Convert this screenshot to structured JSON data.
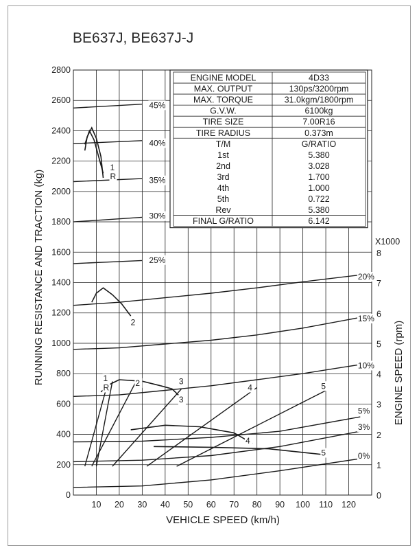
{
  "title": "BE637J, BE637J-J",
  "spec_table": [
    [
      "ENGINE MODEL",
      "4D33"
    ],
    [
      "MAX. OUTPUT",
      "130ps/3200rpm"
    ],
    [
      "MAX. TORQUE",
      "31.0kgm/1800rpm"
    ],
    [
      "G.V.W.",
      "6100kg"
    ],
    [
      "TIRE SIZE",
      "7.00R16"
    ],
    [
      "TIRE RADIUS",
      "0.373m"
    ],
    [
      "T/M",
      "G/RATIO"
    ],
    [
      "1st",
      "5.380"
    ],
    [
      "2nd",
      "3.028"
    ],
    [
      "3rd",
      "1.700"
    ],
    [
      "4th",
      "1.000"
    ],
    [
      "5th",
      "0.722"
    ],
    [
      "Rev",
      "5.380"
    ],
    [
      "FINAL G/RATIO",
      "6.142"
    ]
  ],
  "chart_data": {
    "type": "line",
    "xlabel": "VEHICLE SPEED (km/h)",
    "ylabel": "RUNNING RESISTANCE AND TRACTION (kg)",
    "y2label": "ENGINE SPEED (rpm)",
    "y2_multiplier_label": "X1000",
    "xlim": [
      0,
      130
    ],
    "ylim": [
      0,
      2800
    ],
    "y2lim": [
      0,
      8
    ],
    "x_ticks": [
      "10",
      "20",
      "30",
      "40",
      "50",
      "60",
      "70",
      "80",
      "90",
      "100",
      "110",
      "120"
    ],
    "y_ticks": [
      "0",
      "200",
      "400",
      "600",
      "800",
      "1000",
      "1200",
      "1400",
      "1600",
      "1800",
      "2000",
      "2200",
      "2400",
      "2600",
      "2800"
    ],
    "y2_ticks": [
      "0",
      "1",
      "2",
      "3",
      "4",
      "5",
      "6",
      "7",
      "8"
    ],
    "grid": true,
    "running_resistance": [
      {
        "label": "45%",
        "points": [
          [
            0,
            2550
          ],
          [
            30,
            2575
          ]
        ]
      },
      {
        "label": "40%",
        "points": [
          [
            0,
            2315
          ],
          [
            30,
            2335
          ]
        ]
      },
      {
        "label": "35%",
        "points": [
          [
            0,
            2065
          ],
          [
            30,
            2085
          ]
        ]
      },
      {
        "label": "30%",
        "points": [
          [
            0,
            1800
          ],
          [
            30,
            1830
          ]
        ]
      },
      {
        "label": "25%",
        "points": [
          [
            0,
            1525
          ],
          [
            30,
            1545
          ]
        ]
      },
      {
        "label": "20%",
        "points": [
          [
            0,
            1250
          ],
          [
            20,
            1270
          ],
          [
            40,
            1300
          ],
          [
            60,
            1330
          ],
          [
            80,
            1365
          ],
          [
            100,
            1405
          ],
          [
            125,
            1450
          ]
        ]
      },
      {
        "label": "15%",
        "points": [
          [
            0,
            960
          ],
          [
            20,
            970
          ],
          [
            40,
            995
          ],
          [
            60,
            1020
          ],
          [
            80,
            1055
          ],
          [
            100,
            1100
          ],
          [
            125,
            1170
          ]
        ]
      },
      {
        "label": "10%",
        "points": [
          [
            0,
            650
          ],
          [
            20,
            660
          ],
          [
            40,
            690
          ],
          [
            60,
            720
          ],
          [
            80,
            760
          ],
          [
            100,
            800
          ],
          [
            125,
            860
          ]
        ]
      },
      {
        "label": "5%",
        "points": [
          [
            0,
            350
          ],
          [
            30,
            355
          ],
          [
            60,
            380
          ],
          [
            90,
            420
          ],
          [
            125,
            515
          ]
        ]
      },
      {
        "label": "3%",
        "points": [
          [
            0,
            220
          ],
          [
            30,
            230
          ],
          [
            60,
            260
          ],
          [
            90,
            320
          ],
          [
            125,
            420
          ]
        ]
      },
      {
        "label": "0%",
        "points": [
          [
            0,
            50
          ],
          [
            30,
            60
          ],
          [
            60,
            100
          ],
          [
            90,
            160
          ],
          [
            125,
            240
          ]
        ]
      }
    ],
    "traction": [
      {
        "label": "1",
        "points": [
          [
            5,
            2270
          ],
          [
            6,
            2360
          ],
          [
            8,
            2420
          ],
          [
            10,
            2350
          ],
          [
            12,
            2230
          ],
          [
            13,
            2090
          ]
        ]
      },
      {
        "label": "R",
        "points": [
          [
            5,
            2310
          ],
          [
            7,
            2400
          ],
          [
            9,
            2340
          ],
          [
            11,
            2230
          ],
          [
            13,
            2120
          ]
        ]
      },
      {
        "label": "2",
        "points": [
          [
            8,
            1270
          ],
          [
            10,
            1330
          ],
          [
            13,
            1365
          ],
          [
            17,
            1320
          ],
          [
            21,
            1260
          ],
          [
            25,
            1180
          ]
        ]
      },
      {
        "label": "1",
        "points": [
          [
            12,
            680
          ],
          [
            16,
            730
          ],
          [
            20,
            760
          ]
        ]
      },
      {
        "label": "2",
        "points": [
          [
            20,
            760
          ],
          [
            30,
            750
          ],
          [
            38,
            720
          ]
        ]
      },
      {
        "label": "3",
        "points": [
          [
            38,
            720
          ],
          [
            43,
            700
          ],
          [
            47,
            640
          ]
        ]
      },
      {
        "label": "4",
        "points": [
          [
            25,
            430
          ],
          [
            40,
            460
          ],
          [
            55,
            450
          ],
          [
            70,
            410
          ],
          [
            78,
            340
          ]
        ]
      },
      {
        "label": "5",
        "points": [
          [
            35,
            320
          ],
          [
            60,
            315
          ],
          [
            85,
            305
          ],
          [
            110,
            265
          ]
        ]
      }
    ],
    "engine_speed_lines": [
      {
        "label": "1",
        "points": [
          [
            5,
            0.95
          ],
          [
            15,
            3.7
          ]
        ]
      },
      {
        "label": "R",
        "points": [
          [
            10,
            0.95
          ],
          [
            17,
            3.75
          ]
        ]
      },
      {
        "label": "2",
        "points": [
          [
            8,
            0.95
          ],
          [
            27,
            3.7
          ]
        ]
      },
      {
        "label": "3",
        "points": [
          [
            17,
            0.95
          ],
          [
            47,
            3.5
          ]
        ]
      },
      {
        "label": "4",
        "points": [
          [
            32,
            0.95
          ],
          [
            80,
            3.55
          ]
        ]
      },
      {
        "label": "5",
        "points": [
          [
            45,
            0.95
          ],
          [
            110,
            3.45
          ]
        ]
      }
    ],
    "annotations": [
      {
        "text": "45%",
        "x": 33,
        "y": 2550
      },
      {
        "text": "40%",
        "x": 33,
        "y": 2300
      },
      {
        "text": "35%",
        "x": 33,
        "y": 2055
      },
      {
        "text": "30%",
        "x": 33,
        "y": 1820
      },
      {
        "text": "25%",
        "x": 33,
        "y": 1530
      },
      {
        "text": "20%",
        "x": 124,
        "y": 1420
      },
      {
        "text": "15%",
        "x": 124,
        "y": 1145
      },
      {
        "text": "10%",
        "x": 124,
        "y": 835
      },
      {
        "text": "5%",
        "x": 124,
        "y": 535
      },
      {
        "text": "3%",
        "x": 124,
        "y": 430
      },
      {
        "text": "0%",
        "x": 124,
        "y": 240
      },
      {
        "text": "1",
        "x": 16,
        "y": 2140
      },
      {
        "text": "R",
        "x": 16,
        "y": 2080
      },
      {
        "text": "2",
        "x": 25,
        "y": 1120
      },
      {
        "text": "1",
        "x": 13,
        "y": 750
      },
      {
        "text": "R",
        "x": 13,
        "y": 690
      },
      {
        "text": "2",
        "x": 27,
        "y": 720
      },
      {
        "text": "3",
        "x": 46,
        "y": 730
      },
      {
        "text": "3",
        "x": 46,
        "y": 610
      },
      {
        "text": "4",
        "x": 76,
        "y": 690
      },
      {
        "text": "5",
        "x": 108,
        "y": 700
      },
      {
        "text": "4",
        "x": 75,
        "y": 340
      },
      {
        "text": "5",
        "x": 108,
        "y": 260
      }
    ]
  }
}
